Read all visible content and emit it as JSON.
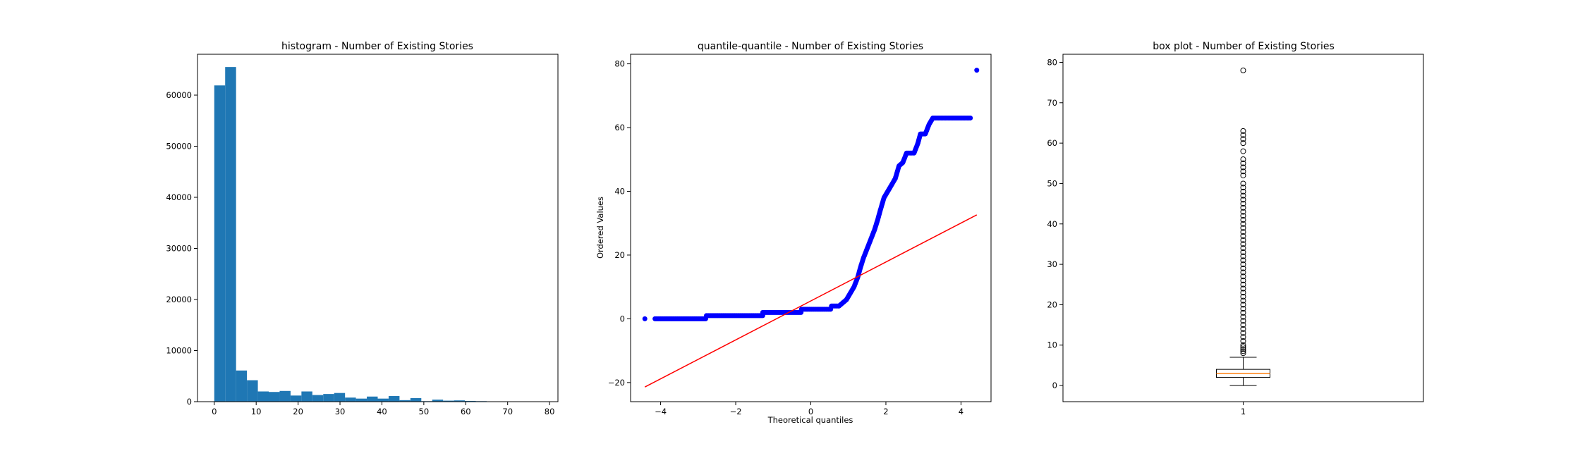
{
  "chart_data": [
    {
      "type": "bar",
      "title": "histogram - Number of Existing Stories",
      "xlabel": "",
      "ylabel": "",
      "xlim": [
        -4,
        82
      ],
      "ylim": [
        0,
        68000
      ],
      "xticks": [
        0,
        10,
        20,
        30,
        40,
        50,
        60,
        70,
        80
      ],
      "yticks": [
        0,
        10000,
        20000,
        30000,
        40000,
        50000,
        60000
      ],
      "bin_edges": [
        0,
        2.6,
        5.2,
        7.8,
        10.4,
        13.0,
        15.6,
        18.2,
        20.8,
        23.4,
        26.0,
        28.6,
        31.2,
        33.8,
        36.4,
        39.0,
        41.6,
        44.2,
        46.8,
        49.4,
        52.0,
        54.6,
        57.2,
        59.8,
        62.4,
        65.0,
        67.6,
        70.2,
        72.8,
        75.4,
        78.0
      ],
      "counts": [
        61900,
        65500,
        6100,
        4200,
        2000,
        1900,
        2100,
        1200,
        2000,
        1300,
        1500,
        1700,
        800,
        600,
        1000,
        600,
        1100,
        300,
        700,
        100,
        400,
        200,
        250,
        150,
        100,
        50,
        30,
        20,
        10,
        10
      ],
      "color": "#1f77b4",
      "grid": false
    },
    {
      "type": "scatter",
      "title": "quantile-quantile - Number of Existing Stories",
      "xlabel": "Theoretical quantiles",
      "ylabel": "Ordered Values",
      "xlim": [
        -4.8,
        4.8
      ],
      "ylim": [
        -26,
        83
      ],
      "xticks": [
        -4,
        -2,
        0,
        2,
        4
      ],
      "yticks": [
        -20,
        0,
        20,
        40,
        60,
        80
      ],
      "series": [
        {
          "kind": "points",
          "color": "#0000ff",
          "segments": [
            {
              "x0": -4.42,
              "x1": -4.42,
              "y": 0
            },
            {
              "x0": -4.15,
              "x1": -2.78,
              "y": 0
            },
            {
              "x0": -2.78,
              "x1": -1.28,
              "y": 1
            },
            {
              "x0": -1.28,
              "x1": -0.25,
              "y": 2
            },
            {
              "x0": -0.25,
              "x1": 0.55,
              "y": 3
            },
            {
              "x0": 0.55,
              "x1": 0.75,
              "y": 4
            }
          ],
          "curve": [
            [
              0.75,
              4
            ],
            [
              0.85,
              5
            ],
            [
              0.95,
              6
            ],
            [
              1.05,
              8
            ],
            [
              1.15,
              10
            ],
            [
              1.25,
              13
            ],
            [
              1.32,
              16
            ],
            [
              1.4,
              19
            ],
            [
              1.5,
              22
            ],
            [
              1.6,
              25
            ],
            [
              1.7,
              28
            ],
            [
              1.78,
              31
            ],
            [
              1.85,
              34
            ],
            [
              1.95,
              38
            ],
            [
              2.05,
              40
            ],
            [
              2.15,
              42
            ],
            [
              2.25,
              44
            ],
            [
              2.35,
              48
            ],
            [
              2.45,
              49
            ],
            [
              2.55,
              52
            ],
            [
              2.75,
              52
            ],
            [
              2.85,
              55
            ],
            [
              2.92,
              58
            ],
            [
              3.05,
              58
            ],
            [
              3.15,
              61
            ],
            [
              3.25,
              63
            ],
            [
              4.25,
              63
            ]
          ],
          "outlier": [
            4.42,
            78
          ]
        },
        {
          "kind": "line",
          "color": "#ff0000",
          "x": [
            -4.42,
            4.42
          ],
          "y": [
            -21.4,
            32.6
          ]
        }
      ],
      "grid": false
    },
    {
      "type": "box",
      "title": "box plot - Number of Existing Stories",
      "xlabel": "",
      "ylabel": "",
      "categories": [
        "1"
      ],
      "xlim": [
        0.5,
        1.5
      ],
      "ylim": [
        -4,
        82
      ],
      "yticks": [
        0,
        10,
        20,
        30,
        40,
        50,
        60,
        70,
        80
      ],
      "box": {
        "min": 0,
        "q1": 2,
        "median": 3,
        "q3": 4,
        "max": 7,
        "median_color": "#ff7f0e"
      },
      "fliers": [
        8,
        8.5,
        9,
        9.5,
        10,
        11,
        12,
        13,
        14,
        15,
        16,
        17,
        18,
        19,
        20,
        21,
        22,
        23,
        24,
        25,
        26,
        27,
        28,
        29,
        30,
        31,
        32,
        33,
        34,
        35,
        36,
        37,
        38,
        39,
        40,
        41,
        42,
        43,
        44,
        45,
        46,
        47,
        48,
        49,
        50,
        52,
        53,
        54,
        55,
        56,
        58,
        60,
        61,
        62,
        63,
        78
      ],
      "grid": false
    }
  ]
}
